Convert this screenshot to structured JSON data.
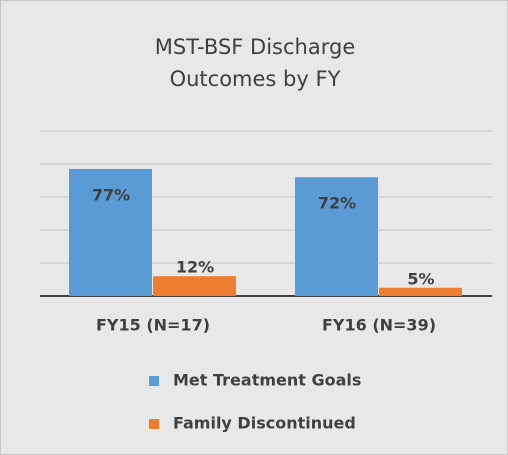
{
  "chart_data": {
    "type": "bar",
    "title": "MST-BSF Discharge Outcomes by FY",
    "categories": [
      "FY15 (N=17)",
      "FY16 (N=39)"
    ],
    "series": [
      {
        "name": "Met Treatment Goals",
        "color": "#5b9bd5",
        "values": [
          77,
          72
        ],
        "value_labels": [
          "77%",
          "72%"
        ]
      },
      {
        "name": "Family Discontinued",
        "color": "#ed7d31",
        "values": [
          12,
          5
        ],
        "value_labels": [
          "12%",
          "5%"
        ]
      }
    ],
    "ylim": [
      0,
      100
    ],
    "yticks": [
      0,
      20,
      40,
      60,
      80,
      100
    ],
    "grid": true,
    "legend": "bottom"
  }
}
